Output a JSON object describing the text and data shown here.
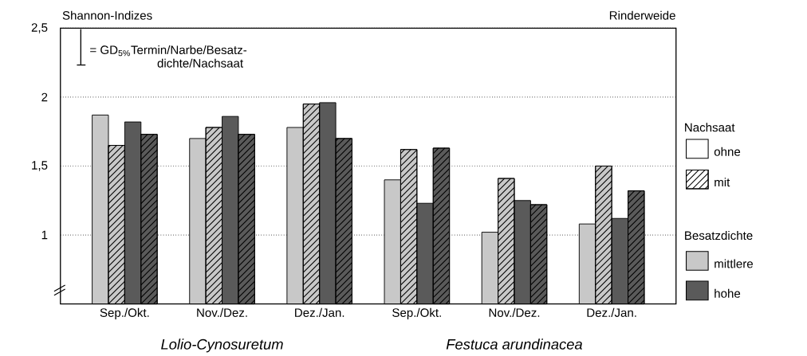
{
  "chart_data": {
    "type": "bar",
    "title": "Rinderweide",
    "ylabel": "Shannon-Indizes",
    "categories": [
      "Sep./Okt.",
      "Nov./Dez.",
      "Dez./Jan.",
      "Sep./Okt.",
      "Nov./Dez.",
      "Dez./Jan."
    ],
    "series": [
      {
        "color": "#c8c8c8",
        "values": [
          1.87,
          1.7,
          1.78,
          1.4,
          1.02,
          1.08
        ]
      },
      {
        "color": "#c8c8c8",
        "values": [
          1.65,
          1.78,
          1.95,
          1.62,
          1.41,
          1.5
        ]
      },
      {
        "color": "#5a5a5a",
        "values": [
          1.82,
          1.86,
          1.96,
          1.23,
          1.25,
          1.12
        ]
      },
      {
        "color": "#5a5a5a",
        "values": [
          1.73,
          1.73,
          1.7,
          1.63,
          1.22,
          1.32
        ]
      }
    ],
    "ylim": [
      0.5,
      2.5
    ],
    "yticks": [
      1,
      {
        "value": 1.5,
        "label": "1,5"
      },
      2,
      {
        "value": 2.5,
        "label": "2,5"
      }
    ],
    "grid": "y",
    "annotations": [
      "= GD$_{5%}$Termin/Narbe/Besatz-",
      "dichte/Nachsaat",
      "Lolio-Cynosuretum",
      "Festuca arundinacea",
      "Nachsaat",
      "ohne",
      "mit",
      "Besatzdichte",
      "mittlere",
      "hohe"
    ]
  }
}
